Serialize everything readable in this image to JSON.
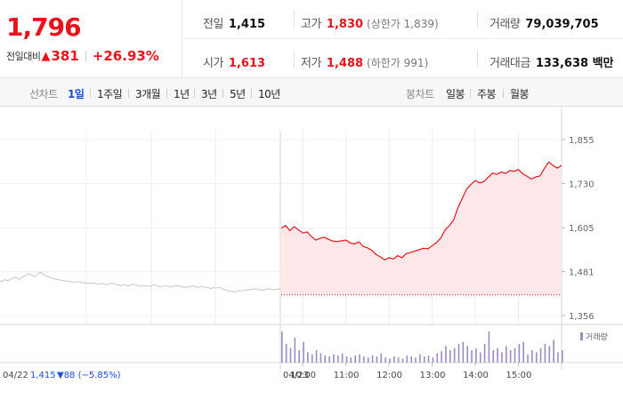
{
  "summary": {
    "current_price": "1,796",
    "change_label": "전일대비",
    "change_icon": "up-triangle-icon",
    "change_amount": "381",
    "change_rate": "+26.93%"
  },
  "stats": {
    "prev_close_label": "전일",
    "prev_close": "1,415",
    "high_label": "고가",
    "high": "1,830",
    "upper_limit": "(상한가 1,839)",
    "volume_label": "거래량",
    "volume": "79,039,705",
    "open_label": "시가",
    "open": "1,613",
    "low_label": "저가",
    "low": "1,488",
    "lower_limit": "(하한가 991)",
    "amount_label": "거래대금",
    "amount": "133,638 백만"
  },
  "period": {
    "line_label": "선차트",
    "line_tabs": [
      "1일",
      "1주일",
      "3개월",
      "1년",
      "3년",
      "5년",
      "10년"
    ],
    "candle_label": "봉차트",
    "candle_tabs": [
      "일봉",
      "주봉",
      "월봉"
    ],
    "active": "1일"
  },
  "colors": {
    "up": "#e8131c",
    "down": "#1d4fd6",
    "volume": "#9b8bc4",
    "prev_day": "#c8c8c8"
  },
  "chart_data": {
    "type": "line",
    "y_ticks": [
      "1,855",
      "1,730",
      "1,605",
      "1,481",
      "1,356"
    ],
    "ylim": [
      1356,
      1855
    ],
    "baseline": 1415,
    "prev_day_footer": {
      "date": "04/22",
      "close": "1,415",
      "change": "▼88 (−5.85%)"
    },
    "today_label": "04/23",
    "time_labels": [
      "10:00",
      "11:00",
      "12:00",
      "13:00",
      "14:00",
      "15:00"
    ],
    "volume_legend": "거래량",
    "prev_series": {
      "name": "04/22",
      "x": [
        0,
        3,
        6,
        9,
        12,
        15,
        18,
        21,
        24,
        27,
        30,
        33,
        36,
        39,
        42,
        45,
        48,
        51,
        54,
        57,
        60,
        63,
        66,
        69,
        72,
        75,
        78,
        81,
        84,
        87,
        90,
        93,
        96,
        99,
        102,
        105,
        108,
        111,
        114,
        117,
        120,
        123,
        126,
        129,
        132,
        135,
        138,
        141,
        144,
        147,
        150,
        153,
        156,
        159,
        162,
        165,
        168,
        171,
        174,
        177,
        180,
        183,
        186,
        189,
        192,
        195,
        198,
        201,
        204,
        207,
        210,
        213,
        216,
        219,
        222,
        225,
        228,
        231,
        234,
        237,
        240,
        243,
        246,
        249,
        252,
        255,
        258,
        261,
        264,
        267,
        270,
        273,
        276,
        279,
        282,
        285,
        288,
        291,
        294,
        297,
        300,
        303,
        306,
        309,
        312,
        315
      ],
      "y": [
        1452,
        1455,
        1458,
        1454,
        1460,
        1462,
        1465,
        1458,
        1463,
        1468,
        1471,
        1475,
        1470,
        1466,
        1472,
        1480,
        1474,
        1469,
        1466,
        1463,
        1461,
        1459,
        1458,
        1456,
        1455,
        1454,
        1453,
        1451,
        1450,
        1452,
        1451,
        1449,
        1448,
        1447,
        1449,
        1448,
        1446,
        1445,
        1447,
        1446,
        1444,
        1446,
        1448,
        1445,
        1443,
        1441,
        1443,
        1442,
        1440,
        1443,
        1445,
        1442,
        1441,
        1439,
        1441,
        1440,
        1439,
        1441,
        1443,
        1440,
        1438,
        1439,
        1441,
        1438,
        1437,
        1439,
        1442,
        1440,
        1438,
        1436,
        1438,
        1437,
        1440,
        1438,
        1436,
        1437,
        1439,
        1436,
        1435,
        1433,
        1435,
        1434,
        1436,
        1433,
        1430,
        1427,
        1424,
        1425,
        1423,
        1425,
        1427,
        1426,
        1428,
        1430,
        1429,
        1431,
        1432,
        1430,
        1428,
        1429,
        1431,
        1432,
        1430,
        1429,
        1431,
        1432
      ]
    },
    "series": [
      {
        "name": "04/23",
        "x": [
          0,
          0.1,
          0.2,
          0.3,
          0.4,
          0.5,
          0.6,
          0.7,
          0.8,
          0.9,
          1.0,
          1.1,
          1.2,
          1.3,
          1.4,
          1.5,
          1.6,
          1.7,
          1.8,
          1.9,
          2.0,
          2.1,
          2.2,
          2.3,
          2.4,
          2.5,
          2.6,
          2.7,
          2.8,
          2.9,
          3.0,
          3.1,
          3.2,
          3.3,
          3.4,
          3.5,
          3.6,
          3.7,
          3.8,
          3.9,
          4.0,
          4.1,
          4.2,
          4.3,
          4.4,
          4.5,
          4.6,
          4.7,
          4.8,
          4.9,
          5.0,
          5.1,
          5.2,
          5.3,
          5.4,
          5.5,
          5.6,
          5.7,
          5.8,
          5.9,
          6.0,
          6.1,
          6.2,
          6.3,
          6.4,
          6.5
        ],
        "y": [
          1604,
          1611,
          1597,
          1608,
          1599,
          1590,
          1593,
          1580,
          1570,
          1575,
          1578,
          1572,
          1567,
          1566,
          1568,
          1570,
          1562,
          1559,
          1565,
          1552,
          1548,
          1541,
          1529,
          1522,
          1514,
          1520,
          1516,
          1526,
          1520,
          1532,
          1535,
          1539,
          1543,
          1547,
          1545,
          1554,
          1563,
          1576,
          1599,
          1611,
          1628,
          1663,
          1689,
          1715,
          1728,
          1739,
          1732,
          1736,
          1748,
          1760,
          1756,
          1763,
          1759,
          1767,
          1765,
          1770,
          1758,
          1751,
          1743,
          1749,
          1752,
          1773,
          1791,
          1782,
          1774,
          1782
        ]
      }
    ],
    "volume_x": [
      0,
      0.1,
      0.2,
      0.3,
      0.4,
      0.5,
      0.6,
      0.7,
      0.8,
      0.9,
      1.0,
      1.1,
      1.2,
      1.3,
      1.4,
      1.5,
      1.6,
      1.7,
      1.8,
      1.9,
      2.0,
      2.1,
      2.2,
      2.3,
      2.4,
      2.5,
      2.6,
      2.7,
      2.8,
      2.9,
      3.0,
      3.1,
      3.2,
      3.3,
      3.4,
      3.5,
      3.6,
      3.7,
      3.8,
      3.9,
      4.0,
      4.1,
      4.2,
      4.3,
      4.4,
      4.5,
      4.6,
      4.7,
      4.8,
      4.9,
      5.0,
      5.1,
      5.2,
      5.3,
      5.4,
      5.5,
      5.6,
      5.7,
      5.8,
      5.9,
      6.0,
      6.1,
      6.2,
      6.3,
      6.4,
      6.5
    ],
    "volume": [
      30,
      18,
      14,
      24,
      12,
      20,
      10,
      8,
      12,
      9,
      7,
      6,
      8,
      7,
      9,
      6,
      5,
      7,
      8,
      6,
      5,
      7,
      6,
      9,
      5,
      4,
      6,
      5,
      4,
      7,
      6,
      5,
      8,
      6,
      7,
      5,
      9,
      11,
      16,
      12,
      14,
      18,
      20,
      16,
      12,
      14,
      10,
      18,
      30,
      12,
      14,
      10,
      16,
      12,
      14,
      18,
      20,
      8,
      12,
      10,
      14,
      18,
      16,
      22,
      10,
      12
    ]
  }
}
